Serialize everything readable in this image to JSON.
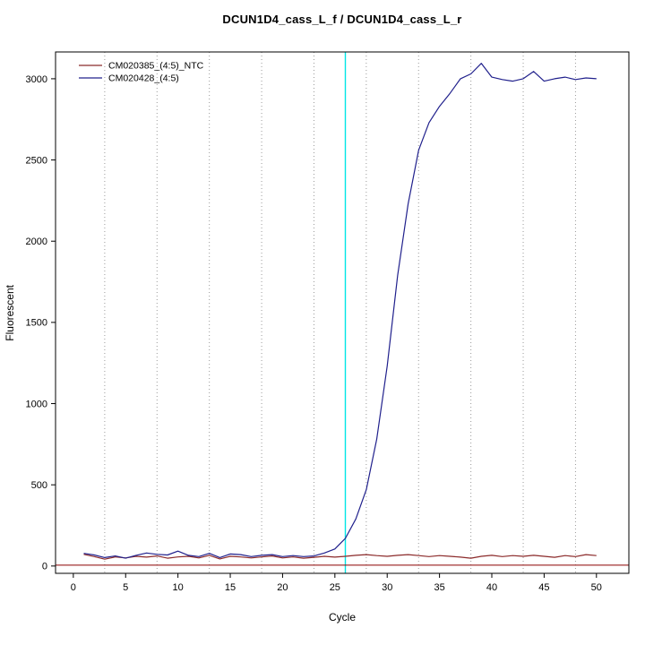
{
  "chart_data": {
    "type": "line",
    "title": "DCUN1D4_cass_L_f / DCUN1D4_cass_L_r",
    "xlabel": "Cycle",
    "ylabel": "Fluorescent",
    "xlim": [
      -1.7,
      53.1
    ],
    "ylim": [
      -45,
      3165
    ],
    "x_ticks": [
      0,
      5,
      10,
      15,
      20,
      25,
      30,
      35,
      40,
      45,
      50
    ],
    "y_ticks": [
      0,
      500,
      1000,
      1500,
      2000,
      2500,
      3000
    ],
    "grid": {
      "vlines": [
        3,
        8,
        13,
        18,
        23,
        28,
        33,
        38,
        43,
        48
      ],
      "color": "#9a9a9a",
      "style": "dotted"
    },
    "vline": {
      "x": 26,
      "color": "#00E5E5",
      "label": "threshold-cycle-line"
    },
    "hline": {
      "y": 5,
      "color": "#8B0000",
      "label": "baseline-threshold-line"
    },
    "legend_position": "top-left",
    "x": [
      1,
      2,
      3,
      4,
      5,
      6,
      7,
      8,
      9,
      10,
      11,
      12,
      13,
      14,
      15,
      16,
      17,
      18,
      19,
      20,
      21,
      22,
      23,
      24,
      25,
      26,
      27,
      28,
      29,
      30,
      31,
      32,
      33,
      34,
      35,
      36,
      37,
      38,
      39,
      40,
      41,
      42,
      43,
      44,
      45,
      46,
      47,
      48,
      49,
      50
    ],
    "series": [
      {
        "name": "CM020385_(4:5)_NTC",
        "color": "#8B2A2A",
        "values": [
          72,
          58,
          42,
          56,
          50,
          60,
          55,
          62,
          48,
          56,
          60,
          50,
          66,
          44,
          60,
          56,
          50,
          56,
          62,
          50,
          56,
          48,
          54,
          60,
          55,
          60,
          66,
          70,
          64,
          60,
          66,
          70,
          64,
          58,
          64,
          60,
          55,
          48,
          60,
          66,
          58,
          64,
          60,
          66,
          60,
          54,
          64,
          58,
          70,
          64
        ]
      },
      {
        "name": "CM020428_(4:5)",
        "color": "#20208C",
        "values": [
          78,
          68,
          52,
          62,
          48,
          66,
          80,
          72,
          68,
          92,
          66,
          58,
          78,
          52,
          74,
          70,
          58,
          66,
          70,
          58,
          64,
          58,
          62,
          80,
          105,
          170,
          290,
          470,
          780,
          1230,
          1790,
          2230,
          2560,
          2730,
          2830,
          2910,
          3000,
          3030,
          3095,
          3010,
          2995,
          2985,
          3000,
          3045,
          2985,
          3000,
          3010,
          2995,
          3005,
          3000
        ]
      }
    ]
  }
}
